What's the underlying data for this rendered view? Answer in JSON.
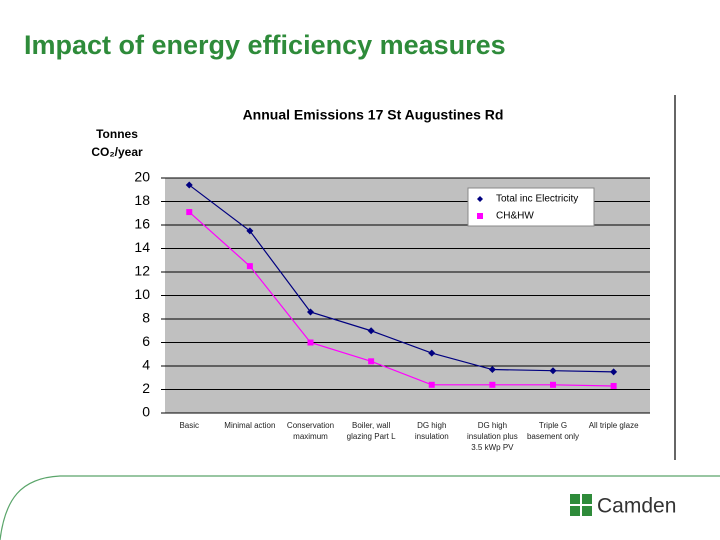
{
  "slide_title": "Impact of energy efficiency measures",
  "logo": "Camden",
  "chart_data": {
    "type": "line",
    "title": "Annual Emissions 17 St Augustines Rd",
    "y_label": [
      "Tonnes",
      "CO₂/year"
    ],
    "categories": [
      [
        "Basic"
      ],
      [
        "Minimal action"
      ],
      [
        "Conservation",
        "maximum"
      ],
      [
        "Boiler, wall",
        "glazing Part L"
      ],
      [
        "DG high",
        "insulation"
      ],
      [
        "DG high",
        "insulation plus",
        "3.5 kWp PV"
      ],
      [
        "Triple G",
        "basement only"
      ],
      [
        "All triple glaze"
      ]
    ],
    "series": [
      {
        "name": "Total inc Electricity",
        "color": "#000080",
        "marker": "diamond",
        "values": [
          19.4,
          15.5,
          8.6,
          7.0,
          5.1,
          3.7,
          3.6,
          3.5
        ]
      },
      {
        "name": "CH&HW",
        "color": "#ff00ff",
        "marker": "square",
        "values": [
          17.1,
          12.5,
          6.0,
          4.4,
          2.4,
          2.4,
          2.4,
          2.3
        ]
      }
    ],
    "ylim": [
      0,
      20
    ],
    "yticks": [
      0,
      2,
      4,
      6,
      8,
      10,
      12,
      14,
      16,
      18,
      20
    ],
    "grid": true,
    "legend": "top-right"
  }
}
